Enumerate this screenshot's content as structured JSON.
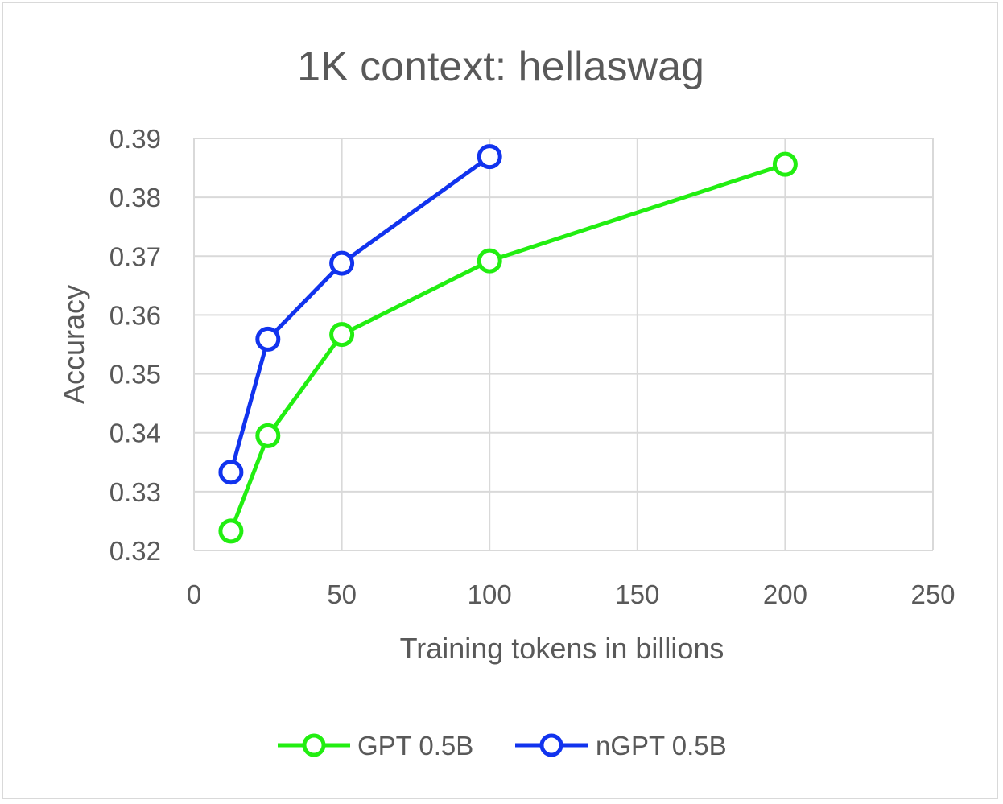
{
  "chart_data": {
    "type": "line",
    "title": "1K context: hellaswag",
    "xlabel": "Training tokens in billions",
    "ylabel": "Accuracy",
    "xlim": [
      0,
      250
    ],
    "ylim": [
      0.32,
      0.39
    ],
    "x_ticks": [
      "0",
      "50",
      "100",
      "150",
      "200",
      "250"
    ],
    "y_ticks": [
      "0.32",
      "0.33",
      "0.34",
      "0.35",
      "0.36",
      "0.37",
      "0.38",
      "0.39"
    ],
    "grid": true,
    "legend_position": "bottom",
    "series": [
      {
        "name": "GPT 0.5B",
        "color": "#22ee11",
        "marker": "circle-open",
        "x": [
          12.5,
          25,
          50,
          100,
          200
        ],
        "y": [
          0.3233,
          0.3395,
          0.3567,
          0.3692,
          0.3856
        ]
      },
      {
        "name": "nGPT 0.5B",
        "color": "#1133ee",
        "marker": "circle-open",
        "x": [
          12.5,
          25,
          50,
          100
        ],
        "y": [
          0.3333,
          0.3559,
          0.3688,
          0.3869
        ]
      }
    ]
  }
}
